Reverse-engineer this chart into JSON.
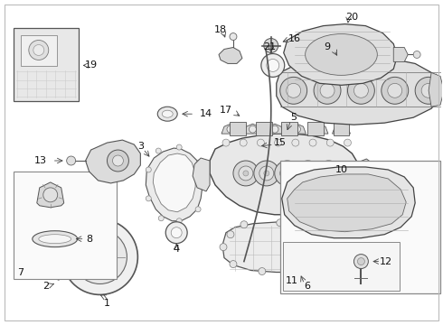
{
  "bg_color": "#ffffff",
  "lc": "#555555",
  "tc": "#111111",
  "fs": 8,
  "figw": 4.9,
  "figh": 3.6,
  "dpi": 100
}
